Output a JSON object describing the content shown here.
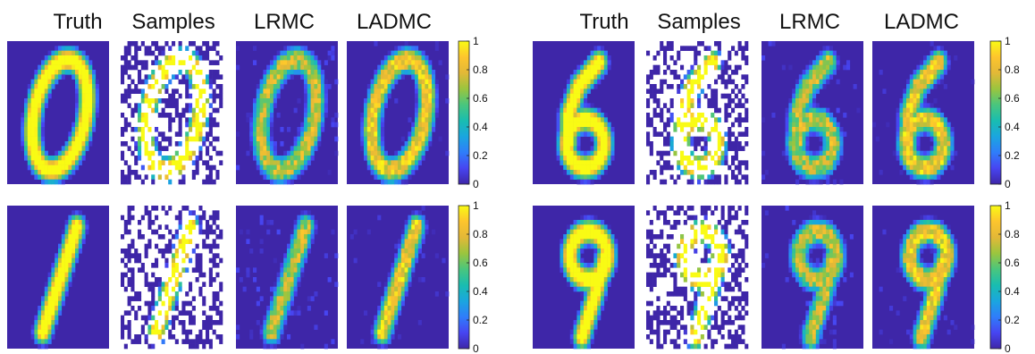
{
  "chart_data": {
    "type": "heatmap",
    "description_columns": [
      "Truth",
      "Samples",
      "LRMC",
      "LADMC"
    ],
    "colormap": [
      "#3e26a8",
      "#4745f2",
      "#2f7dfa",
      "#1aa6df",
      "#19bdb0",
      "#4ac67d",
      "#9bc53e",
      "#e3b837",
      "#fdc52d",
      "#f9fb14"
    ],
    "missing_color": "#ffffff",
    "colorbar": {
      "range": [
        0,
        1
      ],
      "ticks": [
        "0",
        "0.2",
        "0.4",
        "0.6",
        "0.8",
        "1"
      ]
    },
    "panels": [
      {
        "digit": "0",
        "row": 0,
        "group": 0
      },
      {
        "digit": "6",
        "row": 0,
        "group": 1
      },
      {
        "digit": "1",
        "row": 1,
        "group": 0
      },
      {
        "digit": "9",
        "row": 1,
        "group": 1
      }
    ]
  }
}
